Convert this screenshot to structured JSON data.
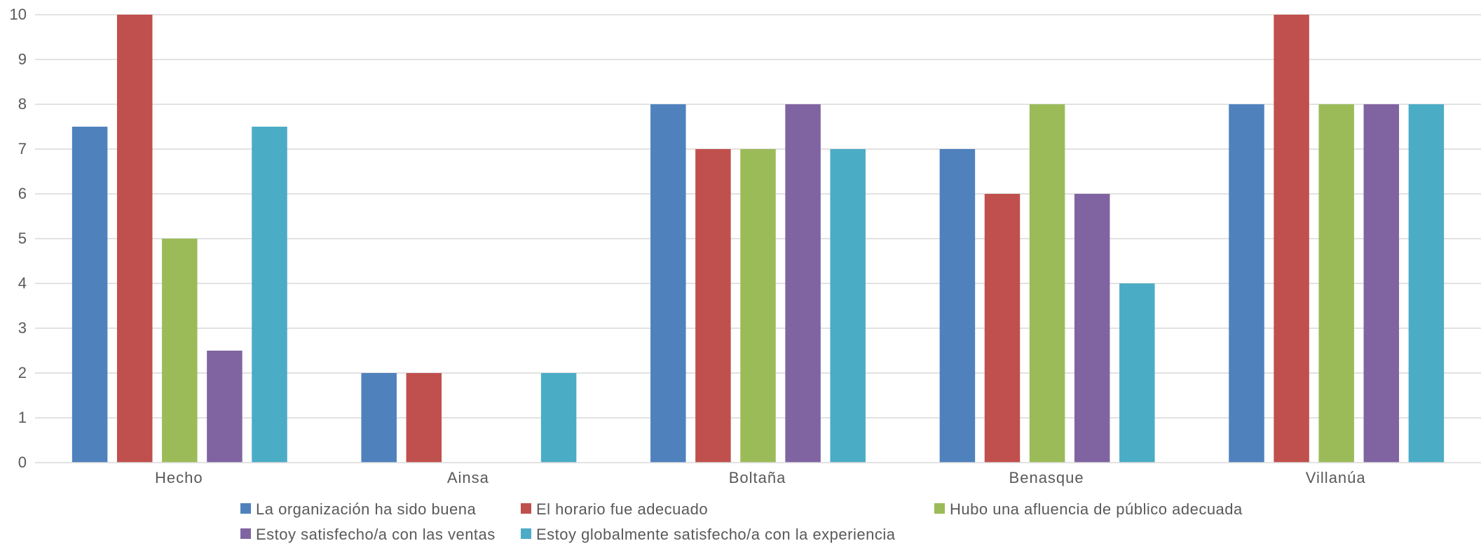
{
  "chart_data": {
    "type": "bar",
    "categories": [
      "Hecho",
      "Ainsa",
      "Boltaña",
      "Benasque",
      "Villanúa"
    ],
    "series": [
      {
        "name": "La organización ha sido buena",
        "color": "#4F81BD",
        "values": [
          7.5,
          2,
          8,
          7,
          8
        ]
      },
      {
        "name": "El horario fue adecuado",
        "color": "#C0504D",
        "values": [
          10,
          2,
          7,
          6,
          10
        ]
      },
      {
        "name": "Hubo una afluencia de público adecuada",
        "color": "#9BBB59",
        "values": [
          5,
          0,
          7,
          8,
          8
        ]
      },
      {
        "name": "Estoy satisfecho/a con las ventas",
        "color": "#8064A2",
        "values": [
          2.5,
          0,
          8,
          6,
          8
        ]
      },
      {
        "name": "Estoy globalmente satisfecho/a con la experiencia",
        "color": "#4BACC6",
        "values": [
          7.5,
          2,
          7,
          4,
          8
        ]
      }
    ],
    "ylim": [
      0,
      10
    ],
    "yticks": [
      "0",
      "1",
      "2",
      "3",
      "4",
      "5",
      "6",
      "7",
      "8",
      "9",
      "10"
    ],
    "title": "",
    "xlabel": "",
    "ylabel": "",
    "grid": true,
    "legend_position": "bottom"
  }
}
